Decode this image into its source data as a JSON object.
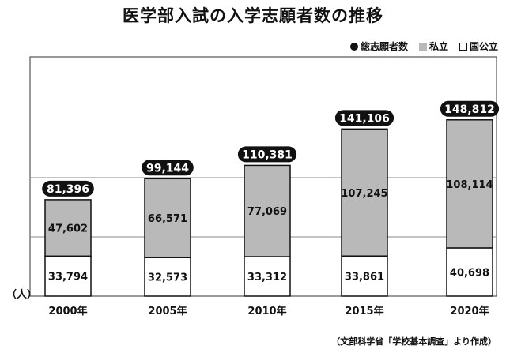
{
  "title": "医学部入試の入学志願者数の推移",
  "legend": {
    "total": "総志願者数",
    "private": "私立",
    "public": "国公立"
  },
  "unit": "（人）",
  "source": "（文部科学省「学校基本調査」より作成）",
  "colors": {
    "private": "#b9b9b9",
    "public": "#ffffff",
    "total_badge": "#111111",
    "gridline": "#888888"
  },
  "chart_data": {
    "type": "bar",
    "stacked": true,
    "categories": [
      "2000年",
      "2005年",
      "2010年",
      "2015年",
      "2020年"
    ],
    "series": [
      {
        "name": "国公立",
        "values": [
          33794,
          32573,
          33312,
          33861,
          40698
        ]
      },
      {
        "name": "私立",
        "values": [
          47602,
          66571,
          77069,
          107245,
          108114
        ]
      }
    ],
    "totals": [
      81396,
      99144,
      110381,
      141106,
      148812
    ],
    "labels": {
      "public": [
        "33,794",
        "32,573",
        "33,312",
        "33,861",
        "40,698"
      ],
      "private": [
        "47,602",
        "66,571",
        "77,069",
        "107,245",
        "108,114"
      ],
      "total": [
        "81,396",
        "99,144",
        "110,381",
        "141,106",
        "148,812"
      ]
    },
    "ylim": [
      0,
      160000
    ],
    "gridlines": [
      50000,
      100000
    ],
    "legend_position": "top-right"
  }
}
